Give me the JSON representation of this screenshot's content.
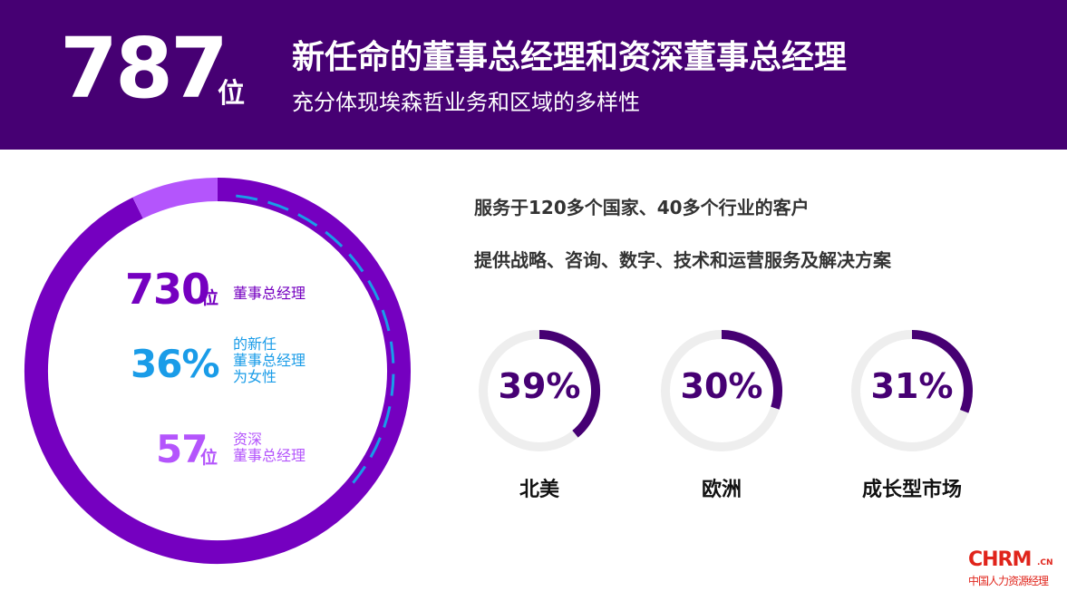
{
  "header": {
    "count": "787",
    "count_unit": "位",
    "title": "新任命的董事总经理和资深董事总经理",
    "subtitle": "充分体现埃森哲业务和区域的多样性"
  },
  "chart_data": [
    {
      "type": "pie",
      "title": "",
      "slices": [
        {
          "label": "董事总经理",
          "value": 730
        },
        {
          "label": "资深董事总经理",
          "value": 57
        }
      ],
      "annotations": [
        {
          "value": "730",
          "unit": "位",
          "text": "董事总经理",
          "color": "#7500c0"
        },
        {
          "value": "36%",
          "unit": "",
          "text": "的新任\n董事总经理\n为女性",
          "color": "#1a9ce8"
        },
        {
          "value": "57",
          "unit": "位",
          "text": "资深\n董事总经理",
          "color": "#b455fc"
        }
      ],
      "colors": {
        "directors": "#7500c0",
        "senior": "#b455fc",
        "women_share": "#1a9ce8"
      }
    },
    {
      "type": "pie",
      "title": "",
      "slices": [
        {
          "label": "北美",
          "value": 39,
          "display": "39%"
        },
        {
          "label": "欧洲",
          "value": 30,
          "display": "30%"
        },
        {
          "label": "成长型市场",
          "value": 31,
          "display": "31%"
        }
      ],
      "colors": {
        "arc": "#460073",
        "track": "#eeeeee"
      }
    }
  ],
  "facts": [
    "服务于120多个国家、40多个行业的客户",
    "提供战略、咨询、数字、技术和运营服务及解决方案"
  ],
  "logo": {
    "main": "CHRM",
    "suffix": ".CN",
    "tagline": "中国人力资源经理"
  }
}
